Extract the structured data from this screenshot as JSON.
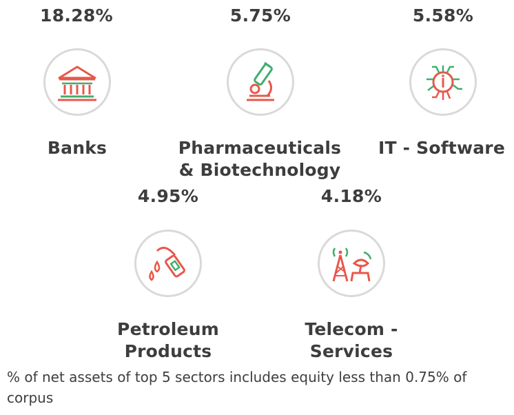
{
  "sectors": [
    {
      "pct": "18.28%",
      "label_line1": "Banks",
      "label_line2": "",
      "icon": "bank-icon"
    },
    {
      "pct": "5.75%",
      "label_line1": "Pharmaceuticals",
      "label_line2": "& Biotechnology",
      "icon": "microscope-icon"
    },
    {
      "pct": "5.58%",
      "label_line1": "IT - Software",
      "label_line2": "",
      "icon": "chip-icon"
    },
    {
      "pct": "4.95%",
      "label_line1": "Petroleum",
      "label_line2": "Products",
      "icon": "fuel-nozzle-icon"
    },
    {
      "pct": "4.18%",
      "label_line1": "Telecom -",
      "label_line2": "Services",
      "icon": "telecom-tower-icon"
    }
  ],
  "footnote": "% of net assets of top 5 sectors includes equity less than 0.75% of corpus",
  "colors": {
    "red": "#e8574a",
    "green": "#3fae6f",
    "text": "#3d3d3d",
    "ring": "#d9d9d9"
  }
}
